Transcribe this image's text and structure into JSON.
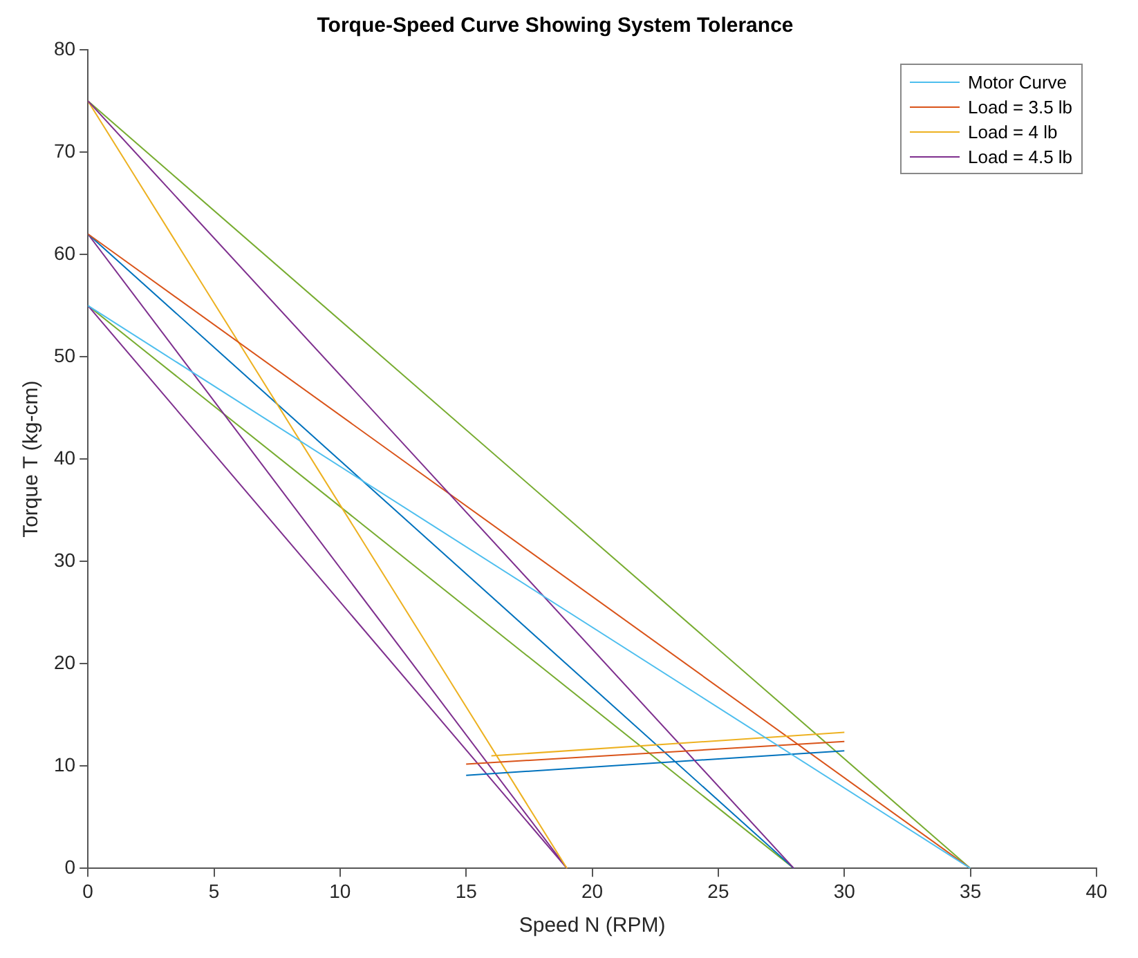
{
  "chart_data": {
    "type": "line",
    "title": "Torque-Speed Curve Showing System Tolerance",
    "xlabel": "Speed N (RPM)",
    "ylabel": "Torque T (kg-cm)",
    "xlim": [
      0,
      40
    ],
    "xticks": [
      0,
      5,
      10,
      15,
      20,
      25,
      30,
      35,
      40
    ],
    "ylim": [
      0,
      80
    ],
    "yticks": [
      0,
      10,
      20,
      30,
      40,
      50,
      60,
      70,
      80
    ],
    "grid": false,
    "legend": "top right",
    "marker": "none",
    "line_style": "solid",
    "series": [
      {
        "name": "Motor Curve",
        "color": "#4dbeee",
        "x": [
          0,
          35
        ],
        "values": [
          55,
          0
        ]
      },
      {
        "name": "Load = 3.5 lb",
        "color": "#d95319",
        "x": [
          15,
          30
        ],
        "values": [
          10.2,
          12.4
        ]
      },
      {
        "name": "Load = 4 lb",
        "color": "#edb120",
        "x": [
          16,
          30
        ],
        "values": [
          11,
          13.3
        ]
      },
      {
        "name": "Load = 4.5 lb",
        "color": "#7e2f8e",
        "x": [
          0,
          28
        ],
        "values": [
          75,
          0
        ]
      },
      {
        "color": "#0072bd",
        "x": [
          15,
          30
        ],
        "values": [
          9.1,
          11.5
        ]
      },
      {
        "color": "#d95319",
        "x": [
          0,
          35
        ],
        "values": [
          62,
          0
        ]
      },
      {
        "color": "#edb120",
        "x": [
          0,
          19
        ],
        "values": [
          75,
          0
        ]
      },
      {
        "color": "#0072bd",
        "x": [
          0,
          28
        ],
        "values": [
          62,
          0
        ]
      },
      {
        "color": "#7e2f8e",
        "x": [
          0,
          19
        ],
        "values": [
          62,
          0
        ]
      },
      {
        "color": "#7e2f8e",
        "x": [
          0,
          19
        ],
        "values": [
          55,
          0
        ]
      },
      {
        "color": "#77ac30",
        "x": [
          0,
          35
        ],
        "values": [
          75,
          0
        ]
      },
      {
        "color": "#77ac30",
        "x": [
          0,
          28
        ],
        "values": [
          55,
          0
        ]
      }
    ]
  }
}
